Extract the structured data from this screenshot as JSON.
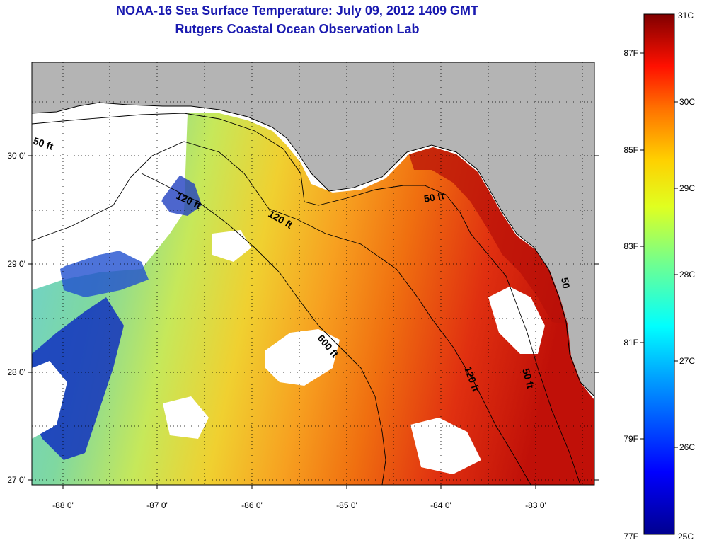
{
  "title": "NOAA-16 Sea Surface Temperature:  July 09, 2012 1409 GMT",
  "subtitle": "Rutgers Coastal Ocean Observation Lab",
  "map": {
    "lon_ticks": [
      "-88 0'",
      "-87 0'",
      "-86 0'",
      "-85 0'",
      "-84 0'",
      "-83 0'"
    ],
    "lat_ticks": [
      "30 0'",
      "29 0'",
      "28 0'",
      "27 0'"
    ],
    "contour_labels": [
      "50 ft",
      "120 ft",
      "120 ft",
      "600 ft",
      "50 ft",
      "120 ft",
      "50 ft",
      "50"
    ],
    "colors": {
      "land": "#b4b4b4",
      "no_data": "#ffffff"
    }
  },
  "colorbar": {
    "celsius": [
      "31C",
      "30C",
      "29C",
      "28C",
      "27C",
      "26C",
      "25C"
    ],
    "fahrenheit": [
      "87F",
      "85F",
      "83F",
      "81F",
      "79F",
      "77F"
    ],
    "range_c": [
      25,
      31
    ]
  }
}
